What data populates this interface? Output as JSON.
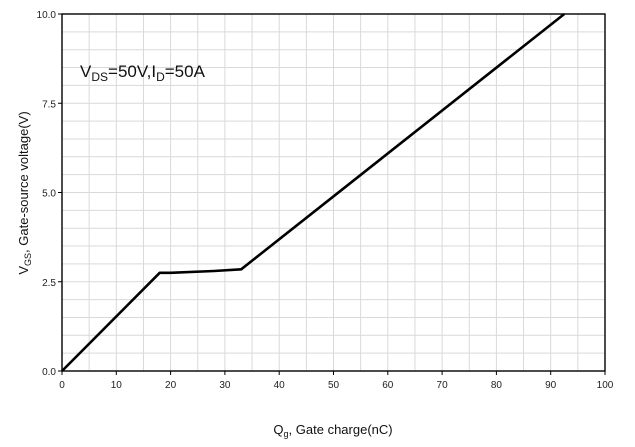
{
  "chart_data": {
    "type": "line",
    "title": "",
    "xlabel": {
      "main": "Q",
      "sub": "g",
      "rest": ", Gate charge(nC)"
    },
    "ylabel": {
      "main": "V",
      "sub": "GS",
      "rest": ", Gate-source voltage(V)"
    },
    "xlim": [
      0,
      100
    ],
    "ylim": [
      0,
      10
    ],
    "x_ticks": [
      "0",
      "10",
      "20",
      "30",
      "40",
      "50",
      "60",
      "70",
      "80",
      "90",
      "100"
    ],
    "y_ticks": [
      "0.0",
      "2.5",
      "5.0",
      "7.5",
      "10.0"
    ],
    "grid": true,
    "annotation": {
      "v": "V",
      "v_sub": "DS",
      "mid": "=50V,I",
      "i_sub": "D",
      "end": "=50A"
    },
    "series": [
      {
        "x": [
          0,
          18,
          20,
          28,
          33,
          92.5
        ],
        "y": [
          0,
          2.75,
          2.75,
          2.8,
          2.85,
          10.0
        ]
      }
    ],
    "colors": {
      "line": "#000000",
      "grid": "#d9d9d9",
      "axis": "#000000"
    }
  }
}
